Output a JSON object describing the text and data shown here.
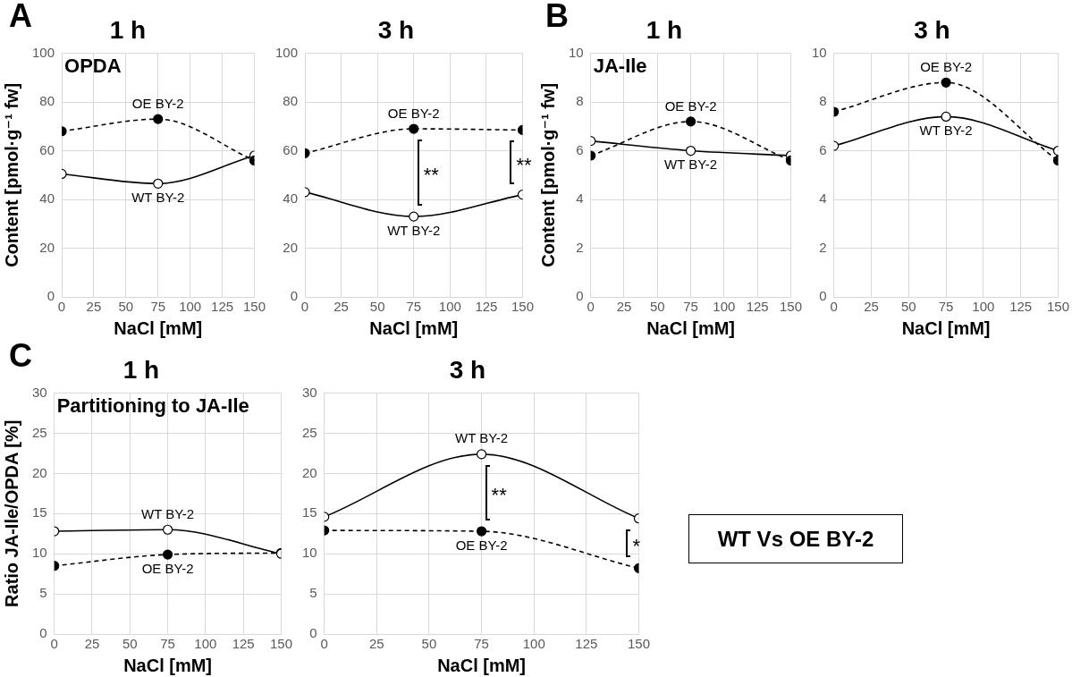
{
  "chart_data": [
    {
      "type": "line",
      "title": "1 h",
      "annotations": [
        "A",
        "OPDA"
      ],
      "ylabel": "Content [pmol·g⁻¹ fw]",
      "xlabel": "NaCl [mM]",
      "x": [
        0,
        75,
        150
      ],
      "xlim": [
        0,
        150
      ],
      "xticks": [
        0,
        25,
        50,
        75,
        100,
        125,
        150
      ],
      "ylim": [
        0,
        100
      ],
      "yticks": [
        0,
        20,
        40,
        60,
        80,
        100
      ],
      "grid": true,
      "marker": "circle",
      "series": [
        {
          "name": "OE BY-2",
          "color": "#000000",
          "line_style": "dashed",
          "values": [
            68,
            73,
            56
          ]
        },
        {
          "name": "WT BY-2",
          "color": "#000000",
          "line_style": "solid",
          "values": [
            50.5,
            46.5,
            58
          ]
        }
      ]
    },
    {
      "type": "line",
      "title": "3 h",
      "xlabel": "NaCl [mM]",
      "x": [
        0,
        75,
        150
      ],
      "xlim": [
        0,
        150
      ],
      "xticks": [
        0,
        25,
        50,
        75,
        100,
        125,
        150
      ],
      "ylim": [
        0,
        100
      ],
      "yticks": [
        0,
        20,
        40,
        60,
        80,
        100
      ],
      "grid": true,
      "marker": "circle",
      "annotations": [
        "**",
        "**"
      ],
      "series": [
        {
          "name": "OE BY-2",
          "color": "#000000",
          "line_style": "dashed",
          "values": [
            59,
            69,
            68.5
          ]
        },
        {
          "name": "WT BY-2",
          "color": "#000000",
          "line_style": "solid",
          "values": [
            43,
            33,
            42
          ]
        }
      ]
    },
    {
      "type": "line",
      "title": "1 h",
      "annotations": [
        "B",
        "JA-Ile"
      ],
      "ylabel": "Content [pmol·g⁻¹ fw]",
      "xlabel": "NaCl [mM]",
      "x": [
        0,
        75,
        150
      ],
      "xlim": [
        0,
        150
      ],
      "xticks": [
        0,
        25,
        50,
        75,
        100,
        125,
        150
      ],
      "ylim": [
        0,
        10
      ],
      "yticks": [
        0,
        2,
        4,
        6,
        8,
        10
      ],
      "grid": true,
      "marker": "circle",
      "series": [
        {
          "name": "OE BY-2",
          "color": "#000000",
          "line_style": "dashed",
          "values": [
            5.8,
            7.2,
            5.6
          ]
        },
        {
          "name": "WT BY-2",
          "color": "#000000",
          "line_style": "solid",
          "values": [
            6.4,
            6.0,
            5.8
          ]
        }
      ]
    },
    {
      "type": "line",
      "title": "3 h",
      "xlabel": "NaCl [mM]",
      "x": [
        0,
        75,
        150
      ],
      "xlim": [
        0,
        150
      ],
      "xticks": [
        0,
        25,
        50,
        75,
        100,
        125,
        150
      ],
      "ylim": [
        0,
        10
      ],
      "yticks": [
        0,
        2,
        4,
        6,
        8,
        10
      ],
      "grid": true,
      "marker": "circle",
      "series": [
        {
          "name": "OE BY-2",
          "color": "#000000",
          "line_style": "dashed",
          "values": [
            7.6,
            8.8,
            5.6
          ]
        },
        {
          "name": "WT BY-2",
          "color": "#000000",
          "line_style": "solid",
          "values": [
            6.2,
            7.4,
            6.0
          ]
        }
      ]
    },
    {
      "type": "line",
      "title": "1 h",
      "annotations": [
        "C",
        "Partitioning to JA-Ile"
      ],
      "ylabel": "Ratio JA-Ile/OPDA [%]",
      "xlabel": "NaCl [mM]",
      "x": [
        0,
        75,
        150
      ],
      "xlim": [
        0,
        150
      ],
      "xticks": [
        0,
        25,
        50,
        75,
        100,
        125,
        150
      ],
      "ylim": [
        0,
        30
      ],
      "yticks": [
        0,
        5,
        10,
        15,
        20,
        25,
        30
      ],
      "grid": true,
      "marker": "circle",
      "series": [
        {
          "name": "WT BY-2",
          "color": "#000000",
          "line_style": "solid",
          "values": [
            12.8,
            13.0,
            10.0
          ]
        },
        {
          "name": "OE BY-2",
          "color": "#000000",
          "line_style": "dashed",
          "values": [
            8.5,
            9.9,
            10.1
          ]
        }
      ]
    },
    {
      "type": "line",
      "title": "3 h",
      "xlabel": "NaCl [mM]",
      "x": [
        0,
        75,
        150
      ],
      "xlim": [
        0,
        150
      ],
      "xticks": [
        0,
        25,
        50,
        75,
        100,
        125,
        150
      ],
      "ylim": [
        0,
        30
      ],
      "yticks": [
        0,
        5,
        10,
        15,
        20,
        25,
        30
      ],
      "grid": true,
      "marker": "circle",
      "annotations": [
        "**",
        "*"
      ],
      "series": [
        {
          "name": "WT BY-2",
          "color": "#000000",
          "line_style": "solid",
          "values": [
            14.6,
            22.4,
            14.4
          ]
        },
        {
          "name": "OE BY-2",
          "color": "#000000",
          "line_style": "dashed",
          "values": [
            12.9,
            12.8,
            8.2
          ]
        }
      ]
    },
    {
      "type": "other",
      "title": "WT Vs OE BY-2"
    }
  ]
}
